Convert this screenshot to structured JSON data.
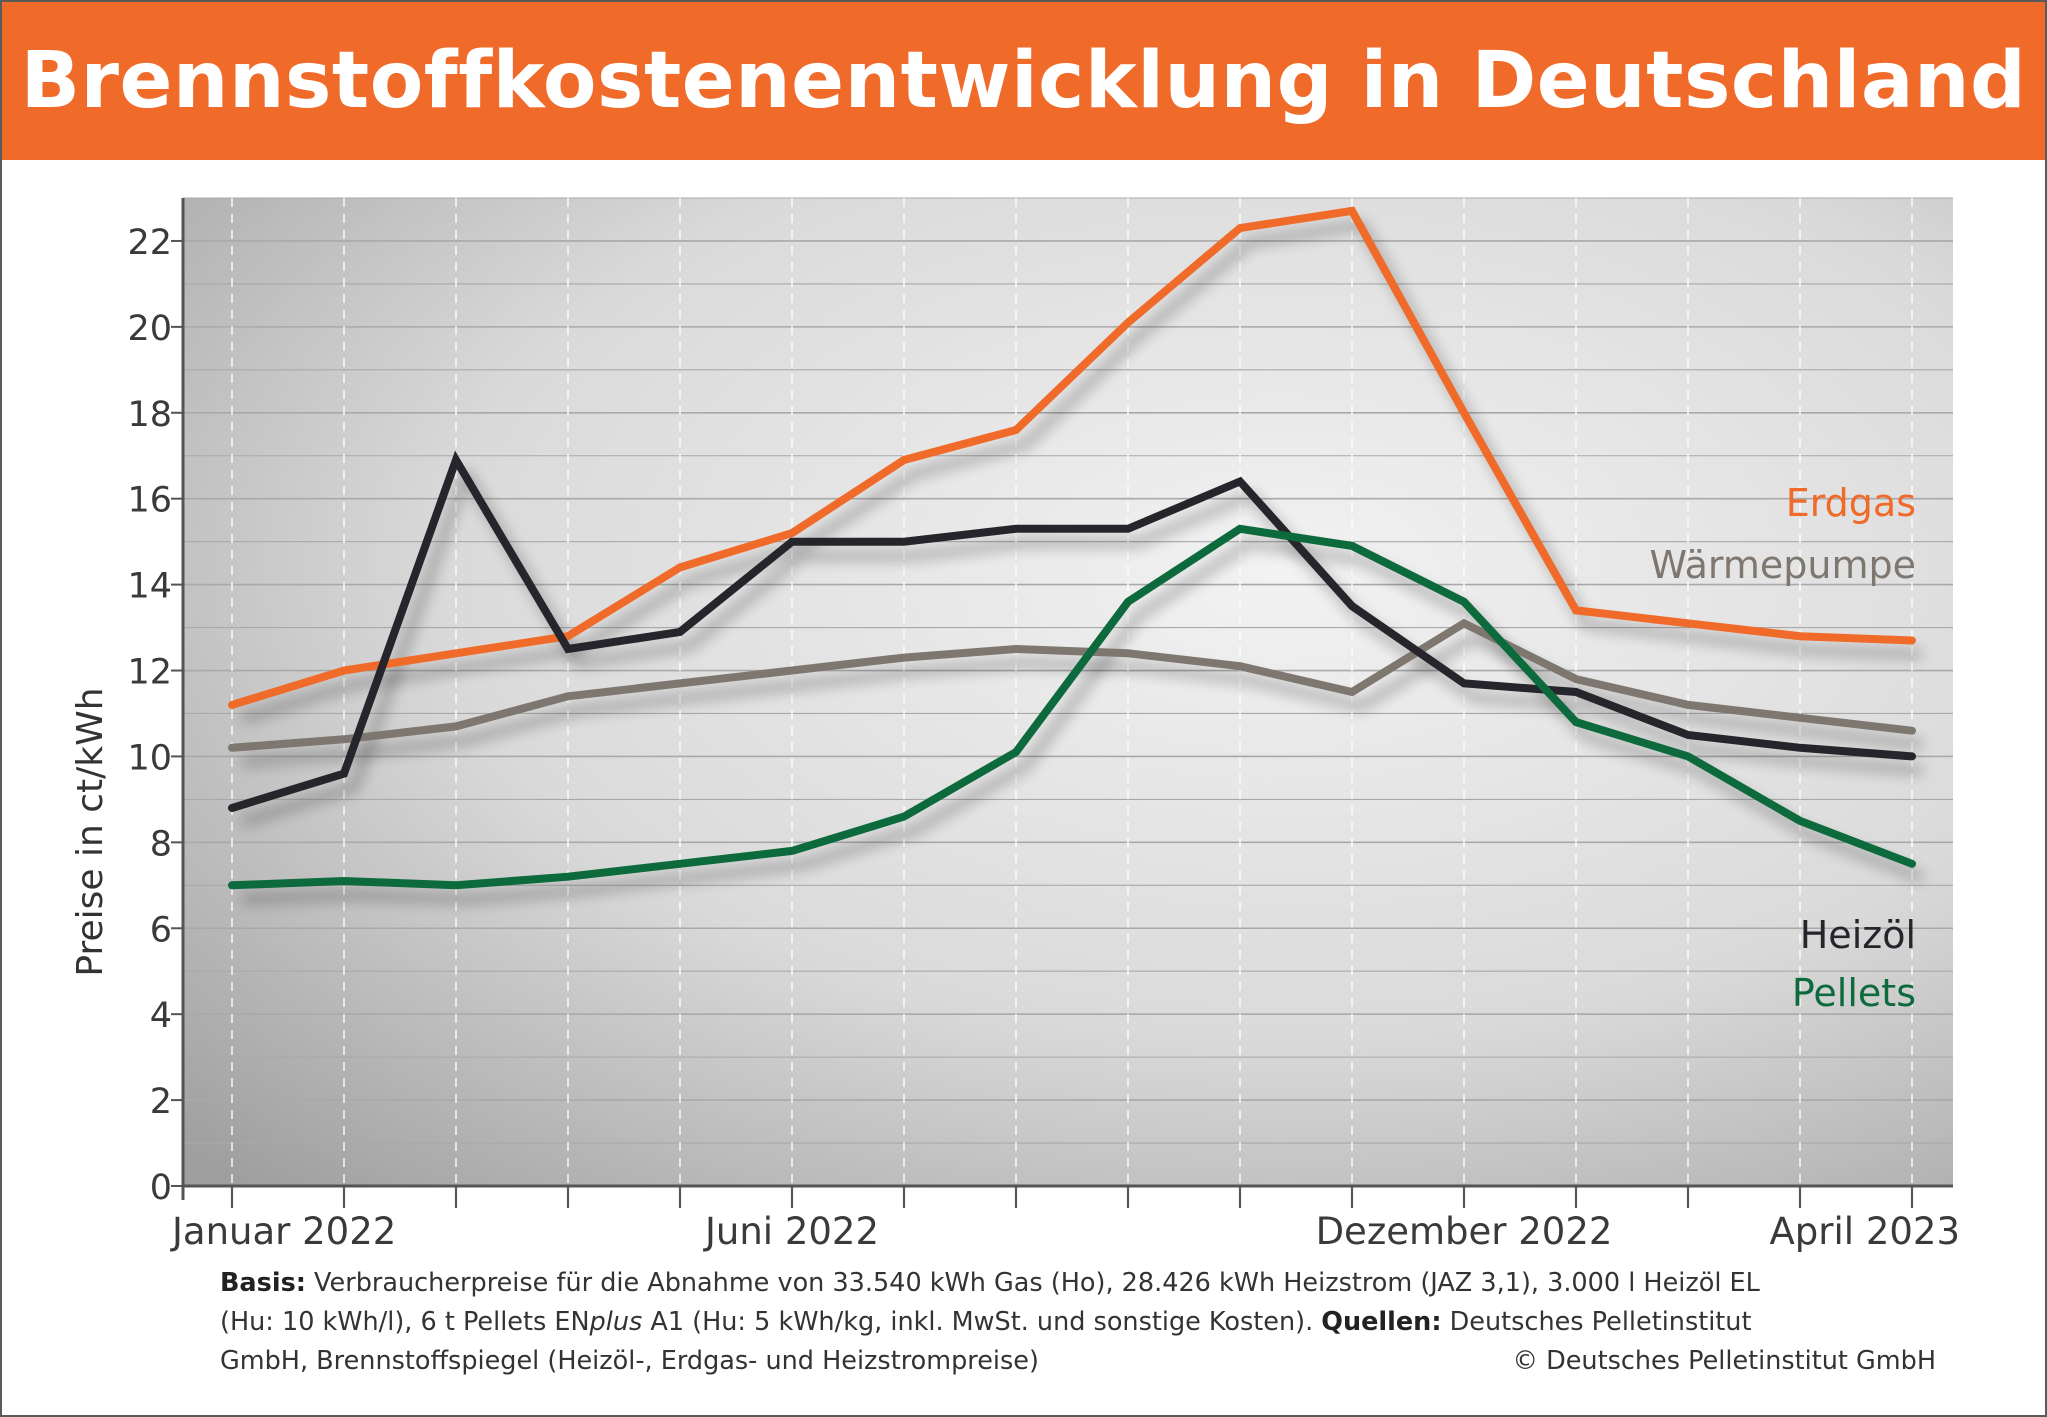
{
  "header": {
    "title": "Brennstoffkostenentwicklung in Deutschland"
  },
  "colors": {
    "header_bg": "#f06a2a",
    "erdgas": "#f06a2a",
    "waermepumpe": "#7d7770",
    "heizoel": "#26252b",
    "pellets": "#0c6a3c"
  },
  "chart_data": {
    "type": "line",
    "title": "Brennstoffkostenentwicklung in Deutschland",
    "ylabel": "Preise in ct/kWh",
    "xlabel": "",
    "ylim": [
      0,
      23
    ],
    "yticks": [
      0,
      2,
      4,
      6,
      8,
      10,
      12,
      14,
      16,
      18,
      20,
      22
    ],
    "x": [
      "2022-01",
      "2022-02",
      "2022-03",
      "2022-04",
      "2022-05",
      "2022-06",
      "2022-07",
      "2022-08",
      "2022-09",
      "2022-10",
      "2022-11",
      "2022-12",
      "2023-01",
      "2023-02",
      "2023-03",
      "2023-04"
    ],
    "xtick_labels": [
      {
        "x": "2022-01",
        "label": "Januar 2022"
      },
      {
        "x": "2022-06",
        "label": "Juni 2022"
      },
      {
        "x": "2022-12",
        "label": "Dezember 2022"
      },
      {
        "x": "2023-04",
        "label": "April 2023"
      }
    ],
    "grid": true,
    "series": [
      {
        "name": "Erdgas",
        "key": "erdgas",
        "values": [
          11.2,
          12.0,
          12.4,
          12.8,
          14.4,
          15.2,
          16.9,
          17.6,
          20.1,
          22.3,
          22.7,
          18.0,
          13.4,
          13.1,
          12.8,
          12.7
        ]
      },
      {
        "name": "Wärmepumpe",
        "key": "waermepumpe",
        "values": [
          10.2,
          10.4,
          10.7,
          11.4,
          11.7,
          12.0,
          12.3,
          12.5,
          12.4,
          12.1,
          11.5,
          13.1,
          11.8,
          11.2,
          10.9,
          10.6
        ]
      },
      {
        "name": "Heizöl",
        "key": "heizoel",
        "values": [
          8.8,
          9.6,
          16.9,
          12.5,
          12.9,
          15.0,
          15.0,
          15.3,
          15.3,
          16.4,
          13.5,
          11.7,
          11.5,
          10.5,
          10.2,
          10.0
        ]
      },
      {
        "name": "Pellets",
        "key": "pellets",
        "values": [
          7.0,
          7.1,
          7.0,
          7.2,
          7.5,
          7.8,
          8.6,
          10.1,
          13.6,
          15.3,
          14.9,
          13.6,
          10.8,
          10.0,
          8.5,
          7.5
        ]
      }
    ],
    "legend": [
      {
        "label": "Erdgas",
        "key": "erdgas"
      },
      {
        "label": "Wärmepumpe",
        "key": "waermepumpe"
      },
      {
        "label": "Heizöl",
        "key": "heizoel"
      },
      {
        "label": "Pellets",
        "key": "pellets"
      }
    ],
    "legend_placement": "right"
  },
  "footer": {
    "basis_label": "Basis:",
    "basis_text_1": " Verbraucherpreise für die Abnahme von 33.540 kWh Gas (Ho), 28.426 kWh Heizstrom (JAZ 3,1), 3.000 l Heizöl EL",
    "basis_text_2a": "(Hu: 10 kWh/l), 6 t Pellets EN",
    "basis_text_2b": "plus",
    "basis_text_2c": " A1 (Hu: 5 kWh/kg, inkl. MwSt. und sonstige Kosten). ",
    "sources_label": "Quellen:",
    "sources_text_1": " Deutsches Pelletinstitut",
    "sources_text_2": "GmbH, Brennstoffspiegel (Heizöl-, Erdgas- und Heizstrompreise)",
    "copyright": "© Deutsches Pelletinstitut GmbH"
  }
}
